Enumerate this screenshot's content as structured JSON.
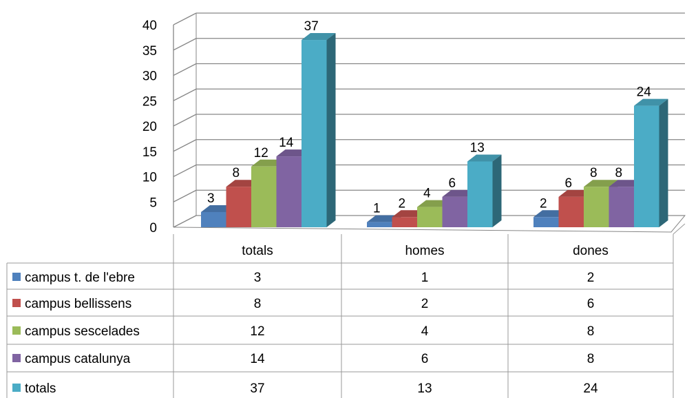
{
  "chart_data": {
    "type": "bar",
    "title": "",
    "xlabel": "",
    "ylabel": "",
    "ylim": [
      0,
      40
    ],
    "yticks": [
      0,
      5,
      10,
      15,
      20,
      25,
      30,
      35,
      40
    ],
    "grid": true,
    "legend": "data-table",
    "categories": [
      "totals",
      "homes",
      "dones"
    ],
    "series": [
      {
        "name": "campus t. de l'ebre",
        "values": [
          3,
          1,
          2
        ],
        "color": "#4F81BD"
      },
      {
        "name": "campus bellissens",
        "values": [
          8,
          2,
          6
        ],
        "color": "#C0504D"
      },
      {
        "name": "campus sescelades",
        "values": [
          12,
          4,
          8
        ],
        "color": "#9BBB59"
      },
      {
        "name": "campus catalunya",
        "values": [
          14,
          6,
          8
        ],
        "color": "#8064A2"
      },
      {
        "name": "totals",
        "values": [
          37,
          13,
          24
        ],
        "color": "#4BACC6"
      }
    ]
  }
}
